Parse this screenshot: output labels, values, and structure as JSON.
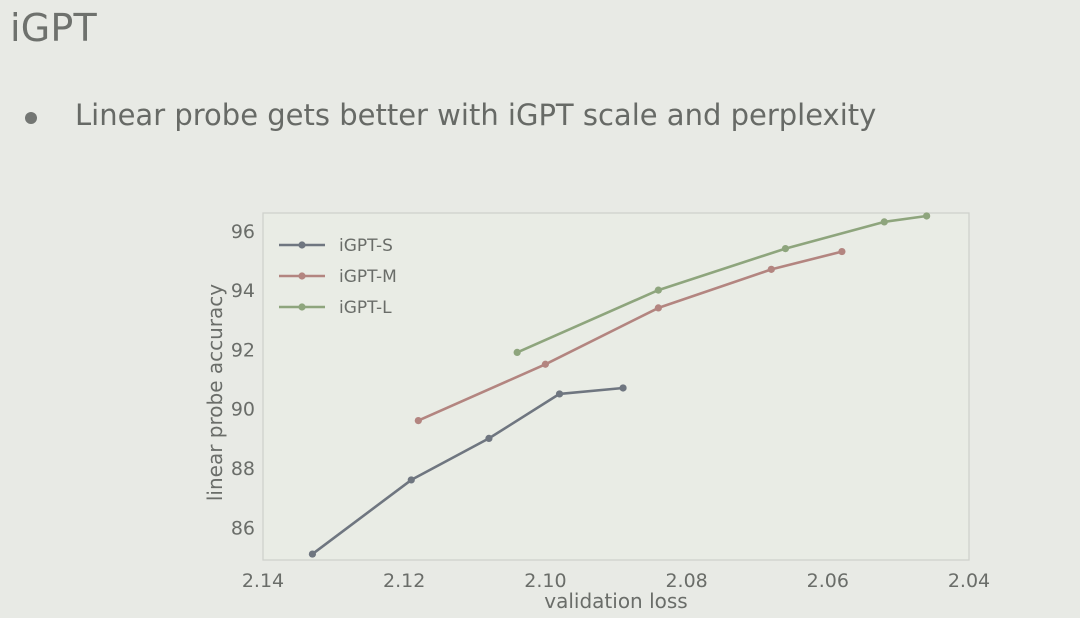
{
  "slide": {
    "title": "iGPT",
    "bullet": "Linear probe gets better with iGPT scale and perplexity"
  },
  "chart_data": {
    "type": "line",
    "xlabel": "validation loss",
    "ylabel": "linear probe accuracy",
    "xlim": [
      2.14,
      2.04
    ],
    "ylim": [
      84.9,
      96.6
    ],
    "x_reversed": true,
    "xticks": [
      "2.14",
      "2.12",
      "2.10",
      "2.08",
      "2.06",
      "2.04"
    ],
    "yticks": [
      "86",
      "88",
      "90",
      "92",
      "94",
      "96"
    ],
    "legend_position": "top-left",
    "grid": false,
    "series": [
      {
        "name": "iGPT-S",
        "color": "#6f7680",
        "points": [
          [
            2.133,
            85.1
          ],
          [
            2.119,
            87.6
          ],
          [
            2.108,
            89.0
          ],
          [
            2.098,
            90.5
          ],
          [
            2.089,
            90.7
          ]
        ]
      },
      {
        "name": "iGPT-M",
        "color": "#b38580",
        "points": [
          [
            2.118,
            89.6
          ],
          [
            2.1,
            91.5
          ],
          [
            2.084,
            93.4
          ],
          [
            2.068,
            94.7
          ],
          [
            2.058,
            95.3
          ]
        ]
      },
      {
        "name": "iGPT-L",
        "color": "#8ea57d",
        "points": [
          [
            2.104,
            91.9
          ],
          [
            2.084,
            94.0
          ],
          [
            2.066,
            95.4
          ],
          [
            2.052,
            96.3
          ],
          [
            2.046,
            96.5
          ]
        ]
      }
    ]
  }
}
